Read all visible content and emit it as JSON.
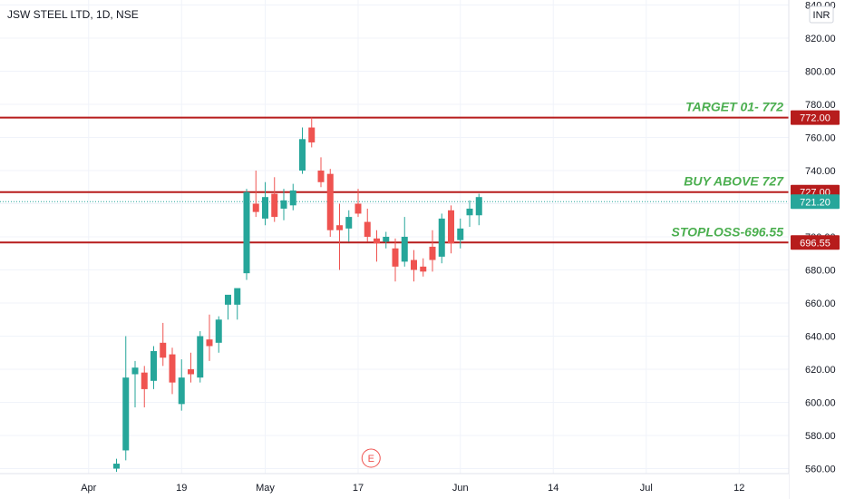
{
  "title": "JSW STEEL LTD, 1D, NSE",
  "currency": "INR",
  "earnings_marker": "E",
  "colors": {
    "up": "#26a69a",
    "down": "#ef5350",
    "level_line": "#b71c1c",
    "annotation": "#4caf50",
    "last_price": "#26a69a",
    "earnings": "#ef5350"
  },
  "chart_data": {
    "type": "candlestick",
    "y_range": [
      557,
      843
    ],
    "x_ticks": [
      {
        "label": "Apr",
        "index": -3
      },
      {
        "label": "19",
        "index": 7
      },
      {
        "label": "May",
        "index": 16
      },
      {
        "label": "17",
        "index": 26
      },
      {
        "label": "Jun",
        "index": 37
      },
      {
        "label": "14",
        "index": 47
      },
      {
        "label": "Jul",
        "index": 57
      },
      {
        "label": "12",
        "index": 67
      }
    ],
    "y_ticks": [
      "840.00",
      "820.00",
      "800.00",
      "780.00",
      "760.00",
      "740.00",
      "720.00",
      "700.00",
      "680.00",
      "660.00",
      "640.00",
      "620.00",
      "600.00",
      "580.00",
      "560.00"
    ],
    "levels": [
      {
        "value": 772,
        "label": "772.00",
        "text": "TARGET 01- 772"
      },
      {
        "value": 727,
        "label": "727.00",
        "text": "BUY ABOVE 727"
      },
      {
        "value": 696.55,
        "label": "696.55",
        "text": "STOPLOSS-696.55"
      }
    ],
    "last_price": {
      "value": 721.2,
      "label": "721.20"
    },
    "earnings_index": 27,
    "candles": [
      {
        "o": 560,
        "h": 566,
        "l": 558,
        "c": 563
      },
      {
        "o": 571,
        "h": 640,
        "l": 565,
        "c": 615
      },
      {
        "o": 617,
        "h": 625,
        "l": 597,
        "c": 621
      },
      {
        "o": 618,
        "h": 622,
        "l": 597,
        "c": 608
      },
      {
        "o": 613,
        "h": 634,
        "l": 608,
        "c": 631
      },
      {
        "o": 636,
        "h": 648,
        "l": 622,
        "c": 627
      },
      {
        "o": 629,
        "h": 633,
        "l": 605,
        "c": 612
      },
      {
        "o": 599,
        "h": 626,
        "l": 595,
        "c": 615
      },
      {
        "o": 620,
        "h": 630,
        "l": 612,
        "c": 617
      },
      {
        "o": 615,
        "h": 643,
        "l": 612,
        "c": 640
      },
      {
        "o": 638,
        "h": 653,
        "l": 625,
        "c": 634
      },
      {
        "o": 636,
        "h": 652,
        "l": 630,
        "c": 650
      },
      {
        "o": 659,
        "h": 664,
        "l": 650,
        "c": 665
      },
      {
        "o": 659,
        "h": 668,
        "l": 650,
        "c": 669
      },
      {
        "o": 678,
        "h": 729,
        "l": 674,
        "c": 727
      },
      {
        "o": 720,
        "h": 740,
        "l": 712,
        "c": 715
      },
      {
        "o": 711,
        "h": 733,
        "l": 707,
        "c": 724
      },
      {
        "o": 726,
        "h": 736,
        "l": 709,
        "c": 712
      },
      {
        "o": 717,
        "h": 729,
        "l": 710,
        "c": 722
      },
      {
        "o": 719,
        "h": 732,
        "l": 716,
        "c": 728
      },
      {
        "o": 740,
        "h": 766,
        "l": 738,
        "c": 759
      },
      {
        "o": 766,
        "h": 772,
        "l": 754,
        "c": 757
      },
      {
        "o": 740,
        "h": 748,
        "l": 730,
        "c": 733
      },
      {
        "o": 738,
        "h": 741,
        "l": 700,
        "c": 704
      },
      {
        "o": 707,
        "h": 720,
        "l": 680,
        "c": 704
      },
      {
        "o": 705,
        "h": 716,
        "l": 697,
        "c": 712
      },
      {
        "o": 720,
        "h": 729,
        "l": 712,
        "c": 714
      },
      {
        "o": 709,
        "h": 717,
        "l": 697,
        "c": 700
      },
      {
        "o": 699,
        "h": 704,
        "l": 685,
        "c": 696
      },
      {
        "o": 697,
        "h": 703,
        "l": 693,
        "c": 700
      },
      {
        "o": 693,
        "h": 699,
        "l": 673,
        "c": 682
      },
      {
        "o": 685,
        "h": 712,
        "l": 682,
        "c": 700
      },
      {
        "o": 686,
        "h": 692,
        "l": 673,
        "c": 680
      },
      {
        "o": 682,
        "h": 687,
        "l": 676,
        "c": 679
      },
      {
        "o": 694,
        "h": 704,
        "l": 679,
        "c": 686
      },
      {
        "o": 688,
        "h": 714,
        "l": 684,
        "c": 711
      },
      {
        "o": 716,
        "h": 719,
        "l": 690,
        "c": 696
      },
      {
        "o": 698,
        "h": 711,
        "l": 693,
        "c": 705
      },
      {
        "o": 713,
        "h": 722,
        "l": 706,
        "c": 717
      },
      {
        "o": 713,
        "h": 726,
        "l": 707,
        "c": 724
      }
    ]
  }
}
